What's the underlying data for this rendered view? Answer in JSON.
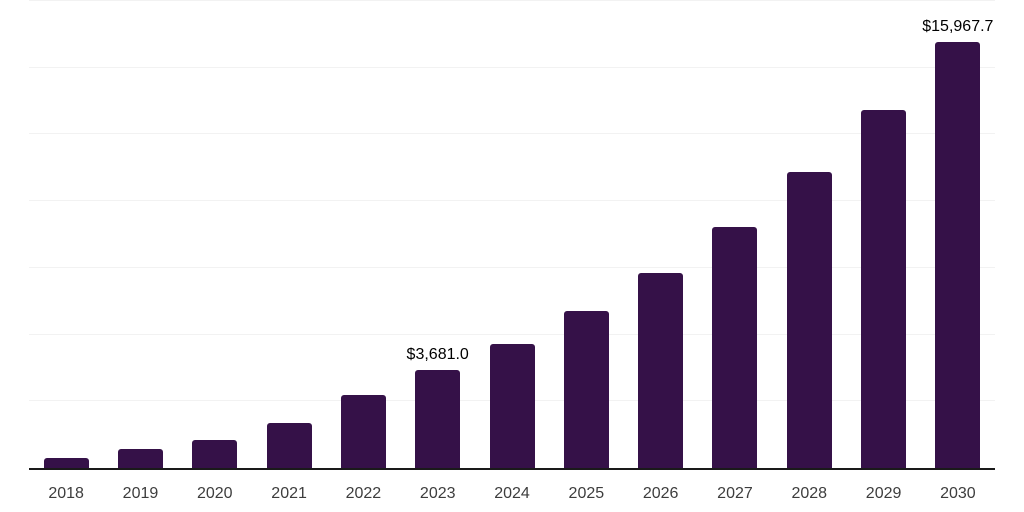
{
  "chart_data": {
    "type": "bar",
    "title": "",
    "xlabel": "",
    "ylabel": "",
    "categories": [
      "2018",
      "2019",
      "2020",
      "2021",
      "2022",
      "2023",
      "2024",
      "2025",
      "2026",
      "2027",
      "2028",
      "2029",
      "2030"
    ],
    "values": [
      380,
      730,
      1060,
      1680,
      2730,
      3681.0,
      4660,
      5880,
      7320,
      9040,
      11100,
      13410,
      15967.7
    ],
    "data_labels": [
      null,
      null,
      null,
      null,
      null,
      "$3,681.0",
      null,
      null,
      null,
      null,
      null,
      null,
      "$15,967.7"
    ],
    "ylim": [
      0,
      17500
    ],
    "gridline_step": 2500,
    "grid": "horizontal-only",
    "legend": "none",
    "y_axis_tick_labels": "none",
    "bar_color": "#351148",
    "data_label_color": "#000000",
    "tick_label_color": "#3d3d3d",
    "gridline_color": "#f2f2f2",
    "axis_line_color": "#1a1a1a",
    "background_color": "#ffffff"
  }
}
